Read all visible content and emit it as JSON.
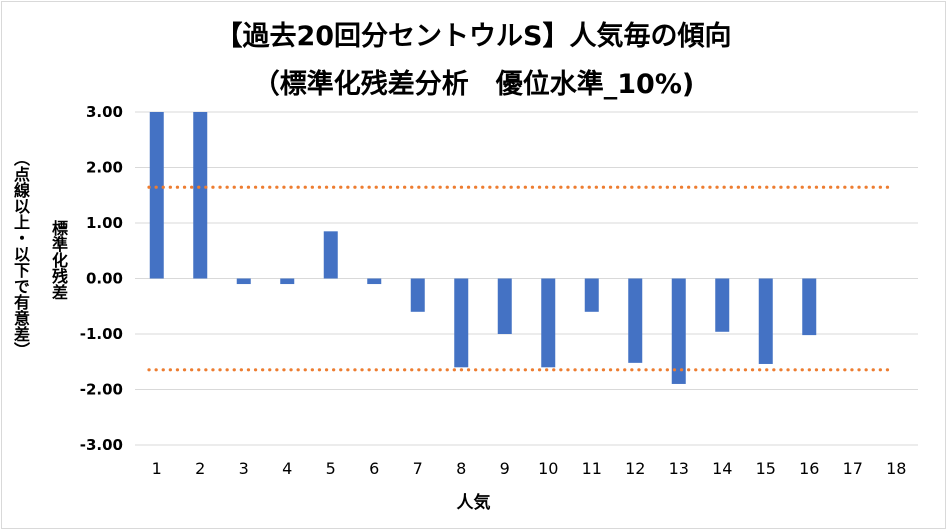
{
  "chart_data": {
    "type": "bar",
    "title": "【過去20回分セントウルS】人気毎の傾向",
    "subtitle": "（標準化残差分析　優位水準_10%)",
    "xlabel": "人気",
    "ylabel": "標準化残差",
    "ylabel_note": "（点線以上・以下で有意差）",
    "categories": [
      "1",
      "2",
      "3",
      "4",
      "5",
      "6",
      "7",
      "8",
      "9",
      "10",
      "11",
      "12",
      "13",
      "14",
      "15",
      "16",
      "17",
      "18"
    ],
    "values": [
      3.0,
      3.0,
      -0.1,
      -0.1,
      0.85,
      -0.1,
      -0.6,
      -1.6,
      -1.0,
      -1.6,
      -0.6,
      -1.52,
      -1.9,
      -0.96,
      -1.54,
      -1.02,
      null,
      null
    ],
    "ylim": [
      -3,
      3
    ],
    "yticks": [
      "3.00",
      "2.00",
      "1.00",
      "0.00",
      "-1.00",
      "-2.00",
      "-3.00"
    ],
    "thresholds": [
      1.645,
      -1.645
    ],
    "bar_color": "#4472c4",
    "threshold_color": "#ed7d31",
    "grid": true
  }
}
